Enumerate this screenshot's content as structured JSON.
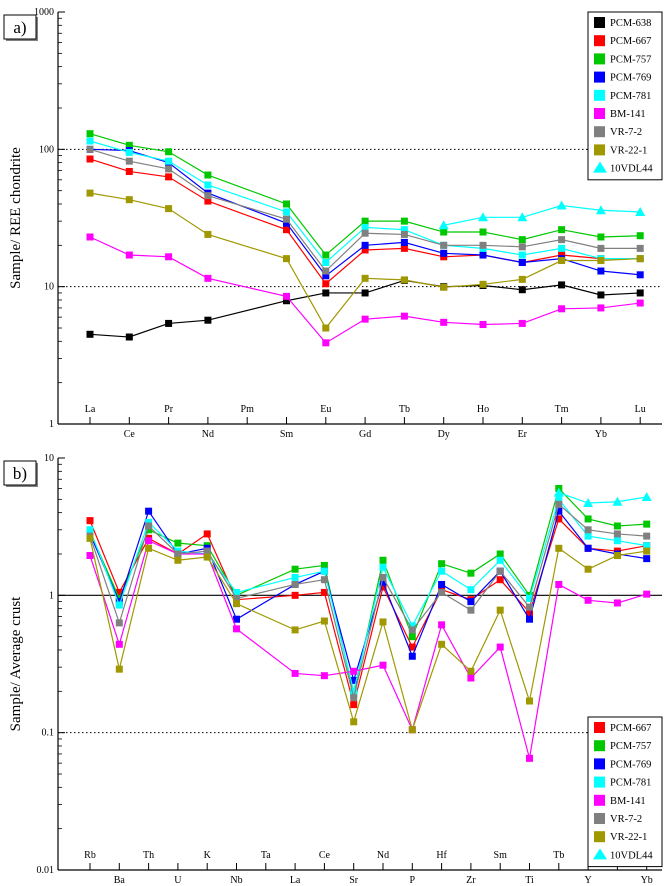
{
  "chart_data": [
    {
      "panel_label": "a)",
      "type": "line",
      "ylabel": "Sample/ REE chondrite",
      "y_scale": "log",
      "ylim": [
        1,
        1000
      ],
      "y_ticks": [
        "1",
        "10",
        "100",
        "1000"
      ],
      "ref_lines": [
        {
          "y": 10,
          "style": "dotted"
        },
        {
          "y": 100,
          "style": "dotted"
        }
      ],
      "legend_position": "top-right",
      "categories": [
        "La",
        "Ce",
        "Pr",
        "Nd",
        "Pm",
        "Sm",
        "Eu",
        "Gd",
        "Tb",
        "Dy",
        "Ho",
        "Er",
        "Tm",
        "Yb",
        "Lu"
      ],
      "series": [
        {
          "name": "PCM-638",
          "color": "#000000",
          "marker": "square",
          "values": [
            4.5,
            4.3,
            5.4,
            5.7,
            null,
            7.9,
            9.0,
            9.0,
            11.1,
            10.0,
            10.2,
            9.5,
            10.3,
            8.7,
            9.0
          ]
        },
        {
          "name": "PCM-667",
          "color": "#ff0000",
          "marker": "square",
          "values": [
            85,
            69,
            63,
            42,
            null,
            26,
            10.5,
            18.5,
            19,
            16.5,
            17,
            15,
            17,
            16,
            16
          ]
        },
        {
          "name": "PCM-757",
          "color": "#00c800",
          "marker": "square",
          "values": [
            130,
            107,
            96,
            65,
            null,
            40,
            17,
            30,
            30,
            25,
            25,
            22,
            26,
            23,
            23.5
          ]
        },
        {
          "name": "PCM-769",
          "color": "#0000ff",
          "marker": "square",
          "values": [
            100,
            98,
            80,
            48,
            null,
            29,
            12,
            20,
            21,
            17.5,
            17,
            15,
            16,
            13,
            12.2
          ]
        },
        {
          "name": "PCM-781",
          "color": "#00ffff",
          "marker": "square",
          "values": [
            115,
            95,
            82,
            55,
            null,
            35,
            15,
            27,
            26,
            20,
            19,
            17,
            19,
            16,
            16
          ]
        },
        {
          "name": "BM-141",
          "color": "#ff00ff",
          "marker": "square",
          "values": [
            23,
            17,
            16.5,
            11.5,
            null,
            8.5,
            3.9,
            5.8,
            6.1,
            5.5,
            5.3,
            5.4,
            6.9,
            7.0,
            7.6
          ]
        },
        {
          "name": "VR-7-2",
          "color": "#808080",
          "marker": "square",
          "values": [
            100,
            82,
            72,
            46,
            null,
            31,
            13,
            24.5,
            24,
            20,
            20,
            19.5,
            22,
            19,
            19
          ]
        },
        {
          "name": "VR-22-1",
          "color": "#a09800",
          "marker": "square",
          "values": [
            48,
            43,
            37,
            24,
            null,
            16,
            5.0,
            11.5,
            11.2,
            9.9,
            10.4,
            11.3,
            15.5,
            15.5,
            16
          ]
        },
        {
          "name": "10VDL44",
          "color": "#00ffff",
          "marker": "triangle",
          "values": [
            null,
            null,
            null,
            null,
            null,
            null,
            null,
            null,
            null,
            28,
            32,
            32,
            39,
            36,
            35
          ]
        }
      ]
    },
    {
      "panel_label": "b)",
      "type": "line",
      "ylabel": "Sample/ Average crust",
      "y_scale": "log",
      "ylim": [
        0.01,
        10
      ],
      "y_ticks": [
        "0.01",
        "0.1",
        "1",
        "10"
      ],
      "ref_lines": [
        {
          "y": 1,
          "style": "solid"
        },
        {
          "y": 0.1,
          "style": "dotted"
        }
      ],
      "legend_position": "bottom-right",
      "categories": [
        "Rb",
        "Ba",
        "Th",
        "U",
        "K",
        "Nb",
        "Ta",
        "La",
        "Ce",
        "Sr",
        "Nd",
        "P",
        "Hf",
        "Zr",
        "Sm",
        "Ti",
        "Tb",
        "Y",
        "Tm",
        "Yb"
      ],
      "series": [
        {
          "name": "PCM-667",
          "color": "#ff0000",
          "marker": "square",
          "values": [
            3.5,
            1.05,
            2.6,
            2.0,
            2.8,
            0.93,
            null,
            1.0,
            1.05,
            0.16,
            1.15,
            0.42,
            1.1,
            0.93,
            1.3,
            0.75,
            3.6,
            2.2,
            2.1,
            2.3
          ]
        },
        {
          "name": "PCM-757",
          "color": "#00c800",
          "marker": "square",
          "values": [
            2.9,
            0.95,
            3.0,
            2.4,
            2.3,
            1.0,
            null,
            1.55,
            1.65,
            0.19,
            1.8,
            0.5,
            1.7,
            1.45,
            2.0,
            1.0,
            6.0,
            3.6,
            3.2,
            3.3
          ]
        },
        {
          "name": "PCM-769",
          "color": "#0000ff",
          "marker": "square",
          "values": [
            2.8,
            0.9,
            4.1,
            2.0,
            2.2,
            0.67,
            null,
            1.2,
            1.5,
            0.24,
            1.25,
            0.36,
            1.2,
            0.9,
            1.5,
            0.67,
            4.1,
            2.2,
            2.0,
            1.85
          ]
        },
        {
          "name": "PCM-781",
          "color": "#00ffff",
          "marker": "square",
          "values": [
            3.0,
            0.85,
            3.4,
            2.1,
            2.0,
            1.05,
            null,
            1.35,
            1.5,
            0.2,
            1.6,
            0.6,
            1.5,
            1.1,
            1.8,
            0.95,
            5.0,
            2.7,
            2.5,
            2.3
          ]
        },
        {
          "name": "BM-141",
          "color": "#ff00ff",
          "marker": "square",
          "values": [
            1.95,
            0.44,
            2.5,
            2.0,
            2.0,
            0.57,
            null,
            0.27,
            0.26,
            0.28,
            0.31,
            0.105,
            0.61,
            0.25,
            0.42,
            0.065,
            1.2,
            0.92,
            0.88,
            1.02
          ]
        },
        {
          "name": "VR-7-2",
          "color": "#808080",
          "marker": "square",
          "values": [
            2.7,
            0.63,
            3.2,
            2.0,
            2.1,
            0.95,
            null,
            1.2,
            1.3,
            0.18,
            1.35,
            0.56,
            1.05,
            0.78,
            1.5,
            0.82,
            4.6,
            3.0,
            2.8,
            2.7
          ]
        },
        {
          "name": "VR-22-1",
          "color": "#a09800",
          "marker": "square",
          "values": [
            2.6,
            0.29,
            2.2,
            1.8,
            1.9,
            0.87,
            null,
            0.56,
            0.65,
            0.12,
            0.64,
            0.105,
            0.44,
            0.28,
            0.78,
            0.17,
            2.2,
            1.55,
            1.95,
            2.1
          ]
        },
        {
          "name": "10VDL44",
          "color": "#00ffff",
          "marker": "triangle",
          "values": [
            null,
            null,
            null,
            null,
            null,
            null,
            null,
            null,
            null,
            null,
            null,
            null,
            null,
            null,
            null,
            null,
            5.6,
            4.7,
            4.8,
            5.2
          ]
        }
      ]
    }
  ]
}
